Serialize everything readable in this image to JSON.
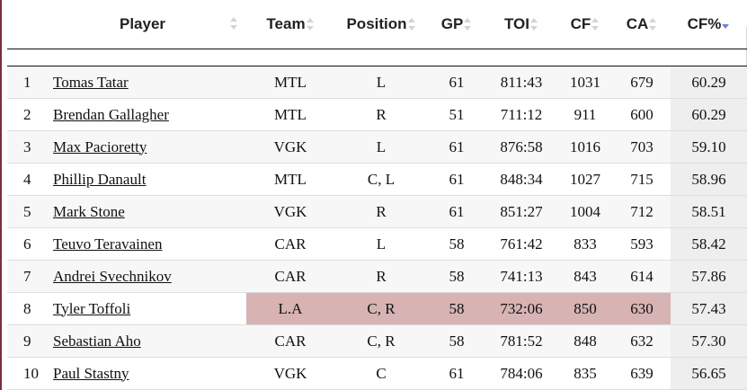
{
  "table": {
    "columns": [
      {
        "key": "rank",
        "label": ""
      },
      {
        "key": "player",
        "label": "Player"
      },
      {
        "key": "team",
        "label": "Team"
      },
      {
        "key": "position",
        "label": "Position"
      },
      {
        "key": "gp",
        "label": "GP"
      },
      {
        "key": "toi",
        "label": "TOI"
      },
      {
        "key": "cf",
        "label": "CF"
      },
      {
        "key": "ca",
        "label": "CA"
      },
      {
        "key": "cfpct",
        "label": "CF%"
      }
    ],
    "sorted_column": "CF%",
    "sort_direction": "descending",
    "highlight_color": "#d7b3b3",
    "rows": [
      {
        "rank": "1",
        "player": "Tomas Tatar",
        "team": "MTL",
        "position": "L",
        "gp": "61",
        "toi": "811:43",
        "cf": "1031",
        "ca": "679",
        "cfpct": "60.29"
      },
      {
        "rank": "2",
        "player": "Brendan Gallagher",
        "team": "MTL",
        "position": "R",
        "gp": "51",
        "toi": "711:12",
        "cf": "911",
        "ca": "600",
        "cfpct": "60.29"
      },
      {
        "rank": "3",
        "player": "Max Pacioretty",
        "team": "VGK",
        "position": "L",
        "gp": "61",
        "toi": "876:58",
        "cf": "1016",
        "ca": "703",
        "cfpct": "59.10"
      },
      {
        "rank": "4",
        "player": "Phillip Danault",
        "team": "MTL",
        "position": "C, L",
        "gp": "61",
        "toi": "848:34",
        "cf": "1027",
        "ca": "715",
        "cfpct": "58.96"
      },
      {
        "rank": "5",
        "player": "Mark Stone",
        "team": "VGK",
        "position": "R",
        "gp": "61",
        "toi": "851:27",
        "cf": "1004",
        "ca": "712",
        "cfpct": "58.51"
      },
      {
        "rank": "6",
        "player": "Teuvo Teravainen",
        "team": "CAR",
        "position": "L",
        "gp": "58",
        "toi": "761:42",
        "cf": "833",
        "ca": "593",
        "cfpct": "58.42"
      },
      {
        "rank": "7",
        "player": "Andrei Svechnikov",
        "team": "CAR",
        "position": "R",
        "gp": "58",
        "toi": "741:13",
        "cf": "843",
        "ca": "614",
        "cfpct": "57.86"
      },
      {
        "rank": "8",
        "player": "Tyler Toffoli",
        "team": "L.A",
        "position": "C, R",
        "gp": "58",
        "toi": "732:06",
        "cf": "850",
        "ca": "630",
        "cfpct": "57.43",
        "highlighted": true
      },
      {
        "rank": "9",
        "player": "Sebastian Aho",
        "team": "CAR",
        "position": "C, R",
        "gp": "58",
        "toi": "781:52",
        "cf": "848",
        "ca": "632",
        "cfpct": "57.30"
      },
      {
        "rank": "10",
        "player": "Paul Stastny",
        "team": "VGK",
        "position": "C",
        "gp": "61",
        "toi": "784:06",
        "cf": "835",
        "ca": "639",
        "cfpct": "56.65"
      }
    ]
  }
}
